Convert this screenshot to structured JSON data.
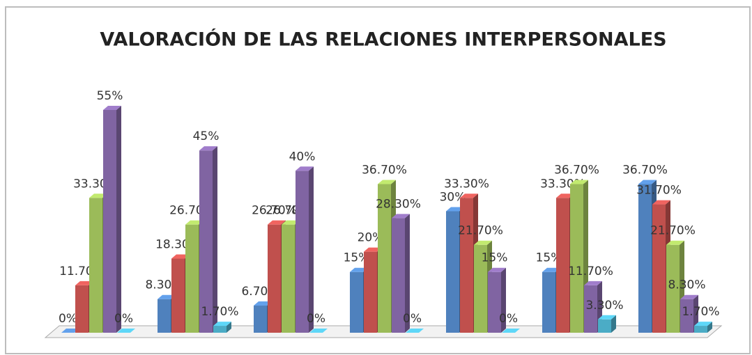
{
  "chart_data": {
    "type": "bar3d",
    "title": "VALORACIÓN DE LAS RELACIONES INTERPERSONALES",
    "series": [
      {
        "color": "#4f81bd",
        "values": [
          0,
          8.3,
          6.7,
          15,
          30,
          15,
          36.7
        ],
        "value_labels": [
          "0%",
          "8.30%",
          "6.70%",
          "15%",
          "30%",
          "15%",
          "36.70%"
        ]
      },
      {
        "color": "#c0504d",
        "values": [
          11.7,
          18.3,
          26.7,
          20,
          33.3,
          33.3,
          31.7
        ],
        "value_labels": [
          "11.70%",
          "18.30%",
          "26.70%",
          "20%",
          "33.30%",
          "33.30%",
          "31.70%"
        ]
      },
      {
        "color": "#9bbb59",
        "values": [
          33.3,
          26.7,
          26.7,
          36.7,
          21.7,
          36.7,
          21.7
        ],
        "value_labels": [
          "33.30%",
          "26.70%",
          "26.70%",
          "36.70%",
          "21.70%",
          "36.70%",
          "21.70%"
        ]
      },
      {
        "color": "#8064a2",
        "values": [
          55,
          45,
          40,
          28.3,
          15,
          11.7,
          8.3
        ],
        "value_labels": [
          "55%",
          "45%",
          "40%",
          "28.30%",
          "15%",
          "11.70%",
          "8.30%"
        ]
      },
      {
        "color": "#4bacc6",
        "values": [
          0,
          1.7,
          0,
          0,
          0,
          3.3,
          1.7
        ],
        "value_labels": [
          "0%",
          "1.70%",
          "0%",
          "0%",
          "0%",
          "3.30%",
          "1.70%"
        ]
      }
    ]
  }
}
